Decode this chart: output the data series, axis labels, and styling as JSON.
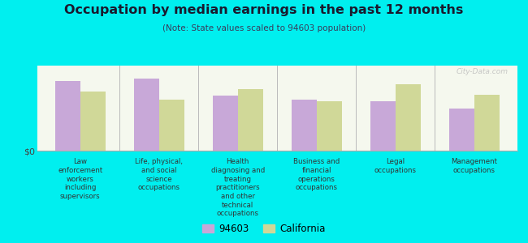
{
  "title": "Occupation by median earnings in the past 12 months",
  "subtitle": "(Note: State values scaled to 94603 population)",
  "background_color": "#00efef",
  "plot_bg_top": "#e8eed8",
  "plot_bg_bottom": "#f5f8ee",
  "categories": [
    "Law\nenforcement\nworkers\nincluding\nsupervisors",
    "Life, physical,\nand social\nscience\noccupations",
    "Health\ndiagnosing and\ntreating\npractitioners\nand other\ntechnical\noccupations",
    "Business and\nfinancial\noperations\noccupations",
    "Legal\noccupations",
    "Management\noccupations"
  ],
  "values_94603": [
    0.82,
    0.85,
    0.65,
    0.6,
    0.58,
    0.5
  ],
  "values_california": [
    0.7,
    0.6,
    0.72,
    0.58,
    0.78,
    0.66
  ],
  "color_94603": "#c8a8d8",
  "color_california": "#d0d898",
  "ylabel": "$0",
  "legend_label_1": "94603",
  "legend_label_2": "California",
  "watermark": "City-Data.com",
  "title_color": "#1a1a2e",
  "subtitle_color": "#3a3a5a"
}
